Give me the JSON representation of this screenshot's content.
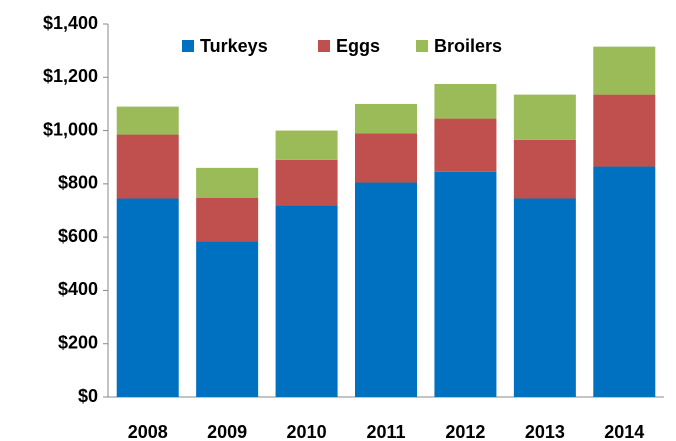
{
  "chart_data": {
    "type": "stacked_bar",
    "categories": [
      "2008",
      "2009",
      "2010",
      "2011",
      "2012",
      "2013",
      "2014"
    ],
    "series": [
      {
        "name": "Turkeys",
        "color": "#0070c0",
        "values": [
          745,
          585,
          720,
          805,
          845,
          745,
          865
        ]
      },
      {
        "name": "Eggs",
        "color": "#c0504d",
        "values": [
          240,
          162,
          170,
          185,
          200,
          220,
          270
        ]
      },
      {
        "name": "Broilers",
        "color": "#9bbb59",
        "values": [
          105,
          113,
          110,
          110,
          130,
          170,
          180
        ]
      }
    ],
    "ylim": [
      0,
      1400
    ],
    "yticks": [
      {
        "value": 0,
        "label": "$0"
      },
      {
        "value": 200,
        "label": "$200"
      },
      {
        "value": 400,
        "label": "$400"
      },
      {
        "value": 600,
        "label": "$600"
      },
      {
        "value": 800,
        "label": "$800"
      },
      {
        "value": 1000,
        "label": "$1,000"
      },
      {
        "value": 1200,
        "label": "$1,200"
      },
      {
        "value": 1400,
        "label": "$1,400"
      }
    ],
    "legend": "top"
  }
}
